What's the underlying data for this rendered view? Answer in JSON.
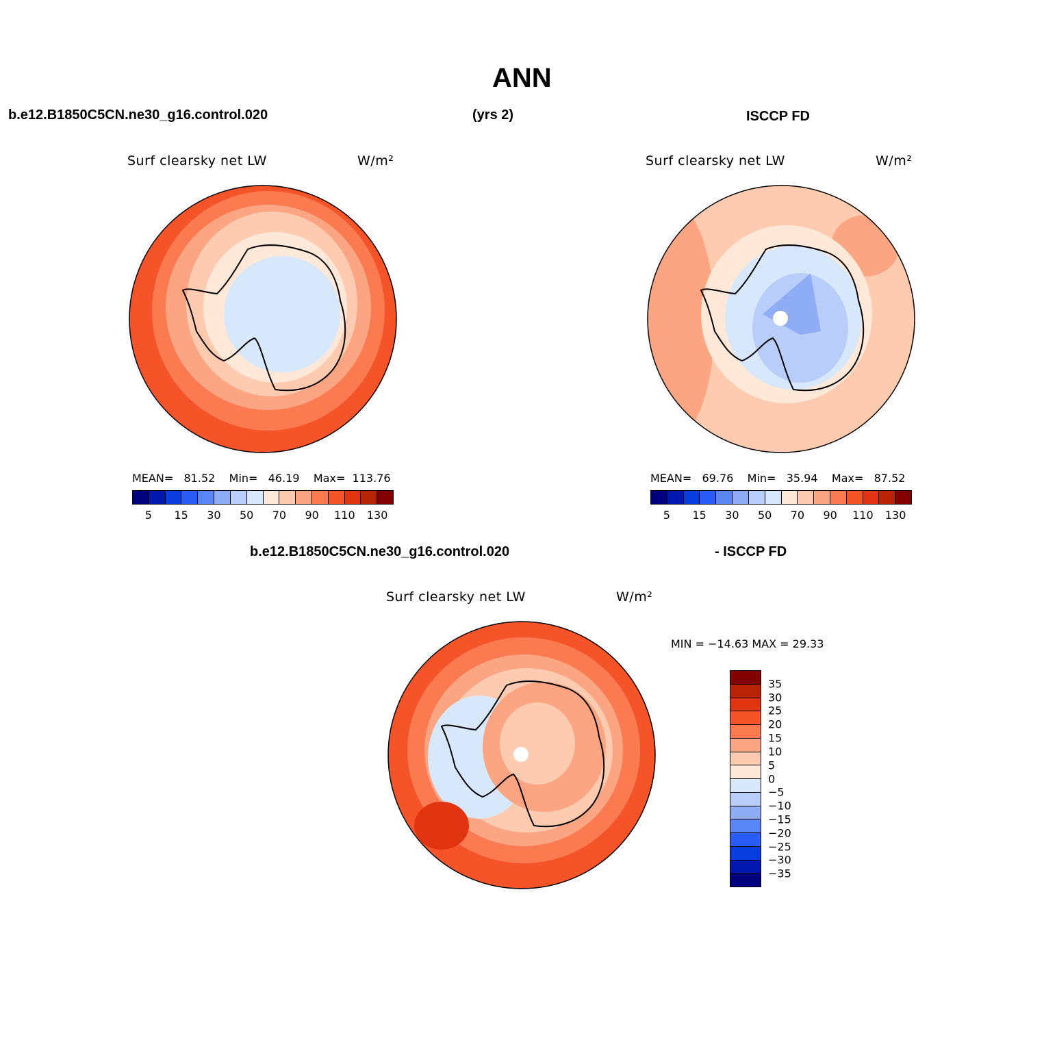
{
  "title": "ANN",
  "header": {
    "model_case": "b.e12.B1850C5CN.ne30_g16.control.020",
    "years": "(yrs 2)",
    "obs": "ISCCP FD"
  },
  "diff_header": {
    "model_case": "b.e12.B1850C5CN.ne30_g16.control.020",
    "obs": "- ISCCP FD"
  },
  "panels": {
    "model": {
      "variable": "Surf clearsky net LW",
      "units": "W/m²",
      "stats": {
        "mean_label": "MEAN=",
        "mean": "81.52",
        "min_label": "Min=",
        "min": "46.19",
        "max_label": "Max=",
        "max": "113.76"
      }
    },
    "obs": {
      "variable": "Surf clearsky net LW",
      "units": "W/m²",
      "stats": {
        "mean_label": "MEAN=",
        "mean": "69.76",
        "min_label": "Min=",
        "min": "35.94",
        "max_label": "Max=",
        "max": "87.52"
      }
    },
    "diff": {
      "variable": "Surf clearsky net LW",
      "units": "W/m²",
      "minmax": "MIN = −14.63 MAX =  29.33"
    }
  },
  "colorbar_abs": {
    "colors": [
      "#00007f",
      "#0018b0",
      "#0a3de0",
      "#2a5df5",
      "#5a85f5",
      "#8fadf5",
      "#b8cdfa",
      "#d8e8fc",
      "#ffe8d8",
      "#ffcbb0",
      "#fca582",
      "#fb7a50",
      "#f55428",
      "#e03510",
      "#b82405",
      "#820000"
    ],
    "ticks": [
      "5",
      "15",
      "30",
      "50",
      "70",
      "90",
      "110",
      "130"
    ]
  },
  "colorbar_diff": {
    "colors": [
      "#820000",
      "#b82405",
      "#e03510",
      "#f55428",
      "#fb7a50",
      "#fca582",
      "#ffcbb0",
      "#ffe8d8",
      "#d8e8fc",
      "#b8cdfa",
      "#8fadf5",
      "#5a85f5",
      "#2a5df5",
      "#0a3de0",
      "#0018b0",
      "#00007f"
    ],
    "ticks": [
      "35",
      "30",
      "25",
      "20",
      "15",
      "10",
      "5",
      "0",
      "−5",
      "−10",
      "−15",
      "−20",
      "−25",
      "−30",
      "−35"
    ]
  },
  "map_colors": {
    "deep": "#f55428",
    "mid": "#fb7a50",
    "light": "#fca582",
    "pale": "#ffcbb0",
    "cream": "#ffe8d8",
    "ice": "#d8e8fc",
    "blue": "#b8cdfa",
    "blue2": "#8fadf5",
    "darkred": "#e03510"
  }
}
